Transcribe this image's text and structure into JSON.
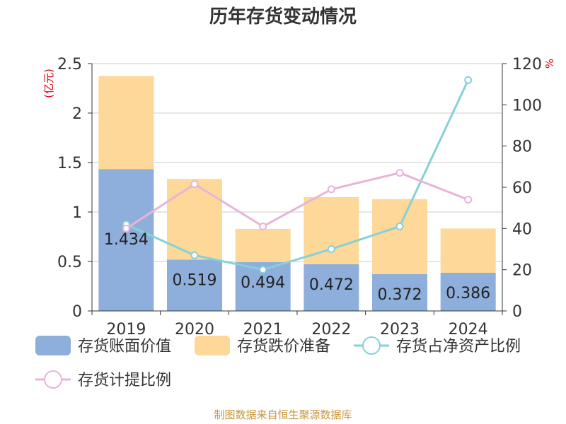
{
  "chart_data": {
    "type": "bar",
    "title": "历年存货变动情况",
    "categories": [
      "2019",
      "2020",
      "2021",
      "2022",
      "2023",
      "2024"
    ],
    "left_axis": {
      "unit": "(亿元)",
      "ylim": [
        0,
        2.5
      ],
      "ticks": [
        "0",
        "0.5",
        "1",
        "1.5",
        "2",
        "2.5"
      ]
    },
    "right_axis": {
      "unit": "%",
      "ylim": [
        0,
        120
      ],
      "ticks": [
        "0",
        "20",
        "40",
        "60",
        "80",
        "100",
        "120"
      ]
    },
    "series": [
      {
        "name": "存货账面价值",
        "kind": "bar",
        "stack": "inv",
        "color": "#8eaedb",
        "values": [
          1.434,
          0.519,
          0.494,
          0.472,
          0.372,
          0.386
        ],
        "labels": [
          "1.434",
          "0.519",
          "0.494",
          "0.472",
          "0.372",
          "0.386"
        ]
      },
      {
        "name": "存货跌价准备",
        "kind": "bar",
        "stack": "inv",
        "color": "#fdd898",
        "values": [
          0.94,
          0.815,
          0.335,
          0.678,
          0.758,
          0.447
        ]
      },
      {
        "name": "存货占净资产比例",
        "kind": "line",
        "axis": "right",
        "color": "#86d1d8",
        "values": [
          42,
          27,
          20,
          30,
          41,
          112
        ]
      },
      {
        "name": "存货计提比例",
        "kind": "line",
        "axis": "right",
        "color": "#e8b4d8",
        "values": [
          40,
          61.5,
          41,
          59,
          67,
          54
        ]
      }
    ],
    "grid": true,
    "legend": "bottom"
  },
  "source": "制图数据来自恒生聚源数据库"
}
